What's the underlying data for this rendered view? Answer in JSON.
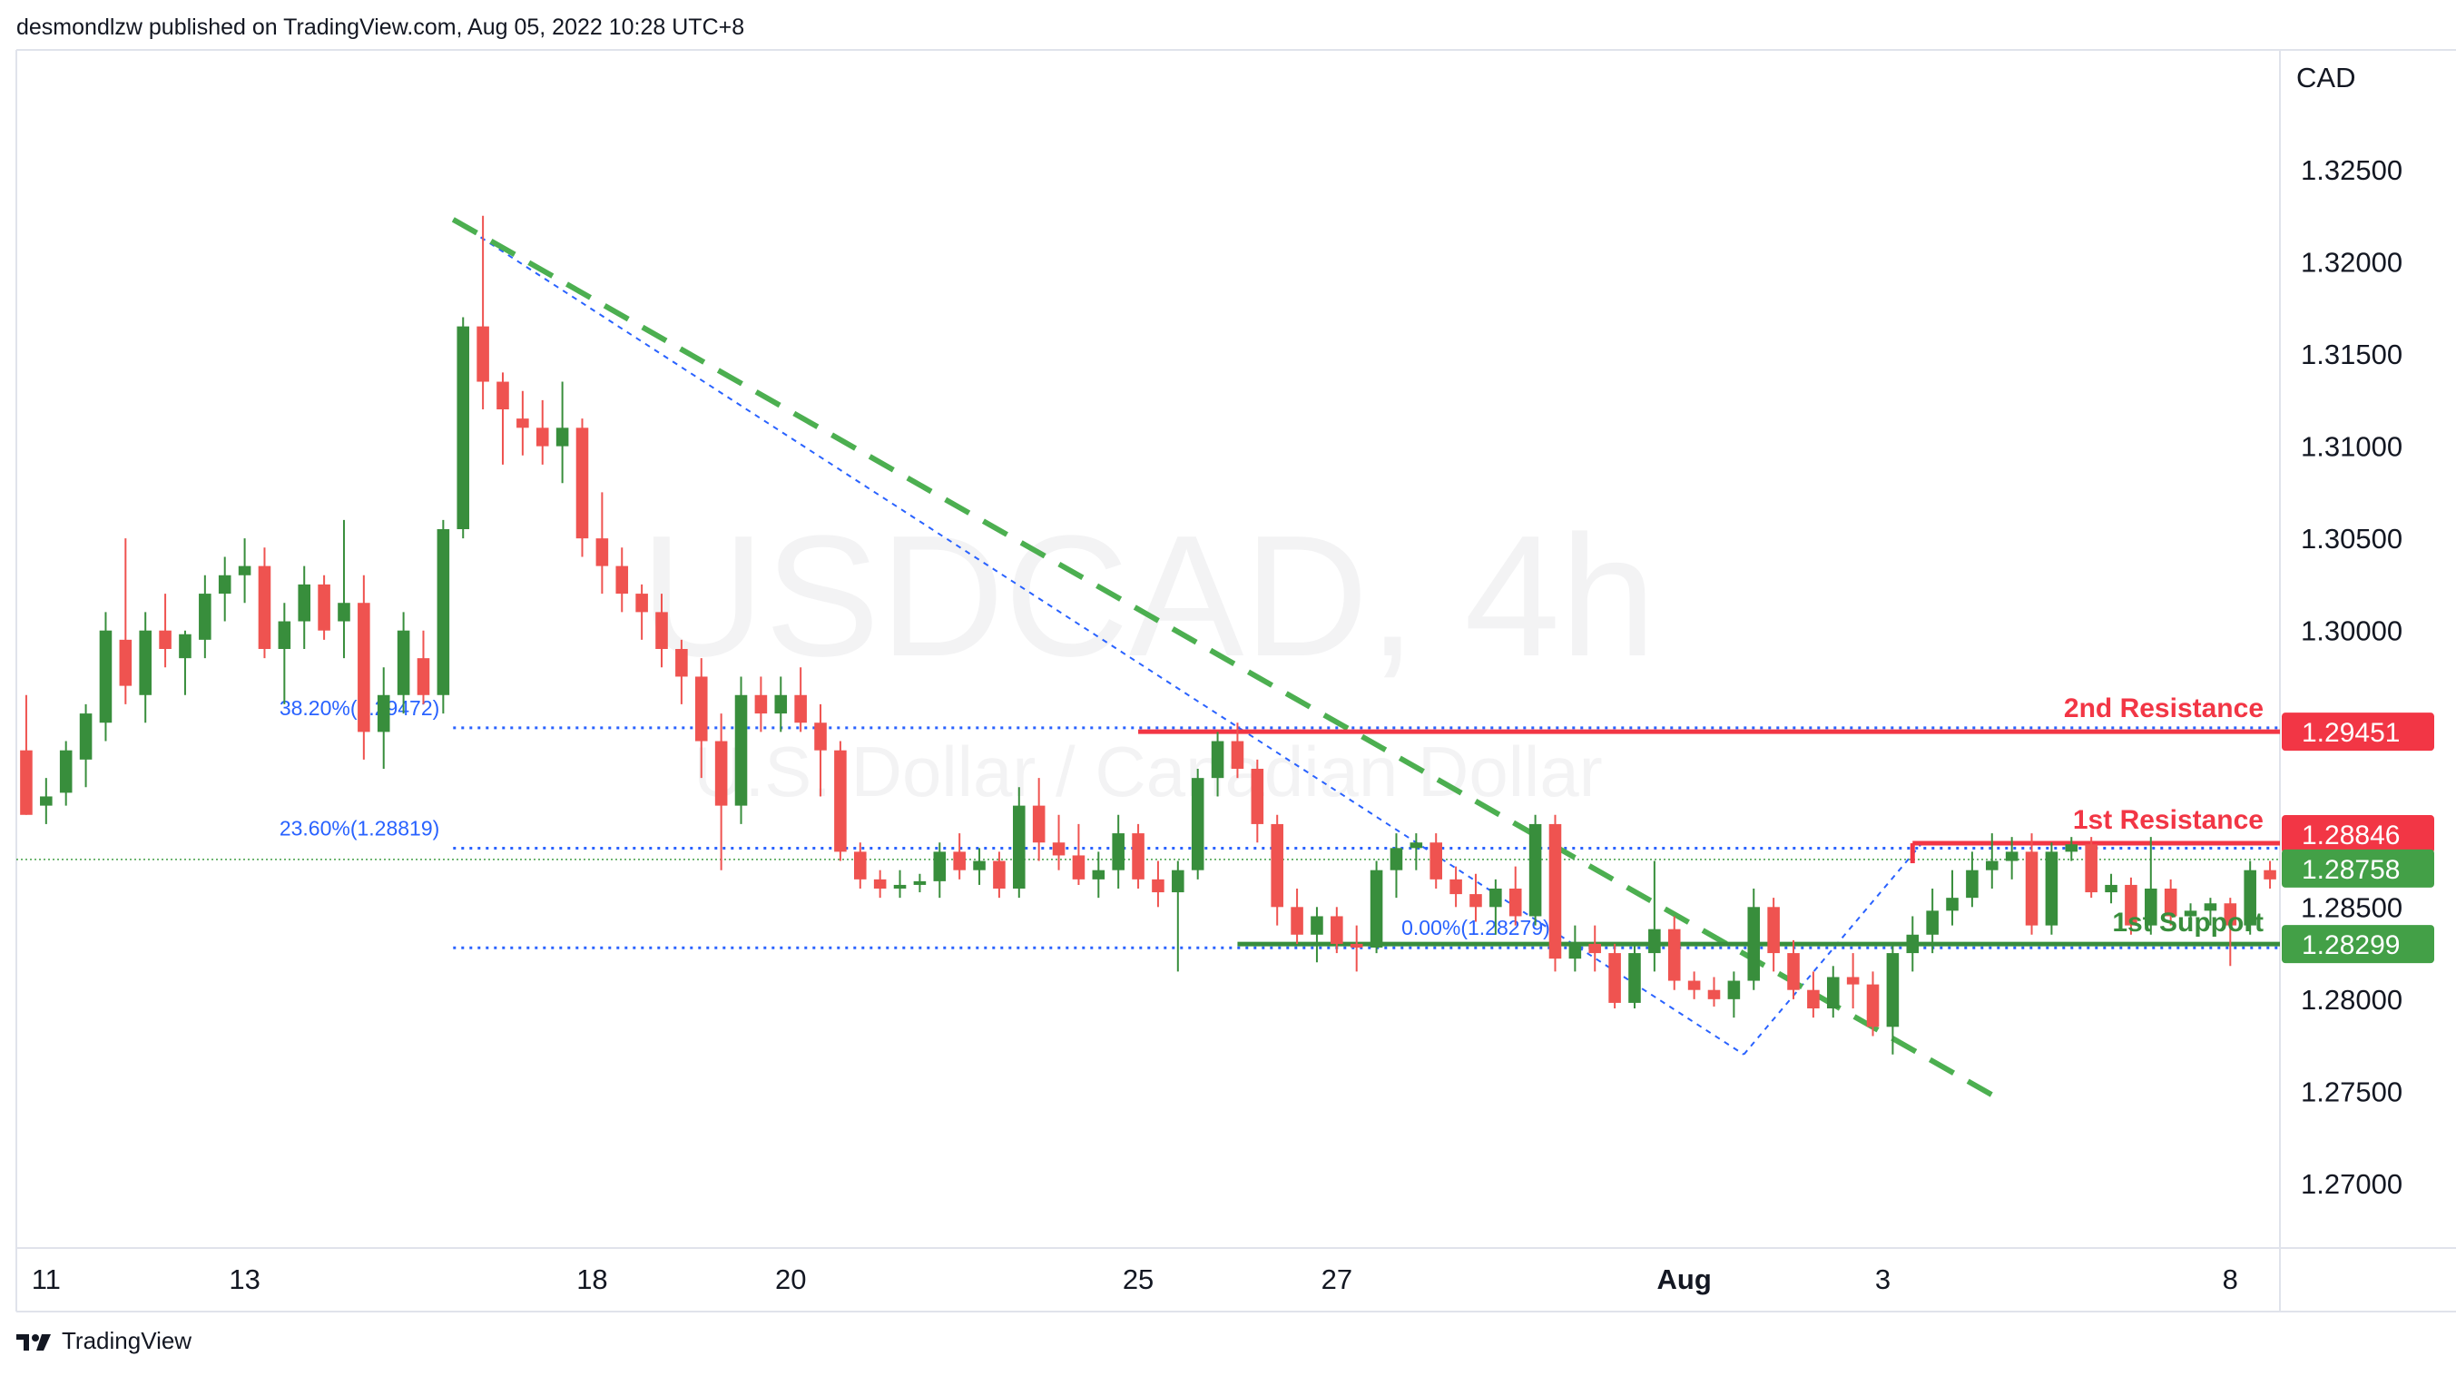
{
  "header": {
    "text": "desmondlzw published on TradingView.com, Aug 05, 2022 10:28 UTC+8"
  },
  "footer": {
    "brand": "TradingView",
    "logo_icon": "tradingview-logo-icon"
  },
  "watermark": {
    "symbol": "USDCAD, 4h",
    "description": "U.S. Dollar / Canadian Dollar"
  },
  "colors": {
    "up": "#388e3c",
    "down": "#ef5350",
    "fib": "#2962ff",
    "resistance": "#f23645",
    "support": "#388e3c",
    "trend": "#4caf50",
    "price_line": "#43a047"
  },
  "chart_data": {
    "type": "candlestick",
    "symbol": "USDCAD",
    "timeframe": "4h",
    "currency_label": "CAD",
    "ylim": [
      1.2665,
      1.3315
    ],
    "y_ticks": [
      1.325,
      1.32,
      1.315,
      1.31,
      1.305,
      1.3,
      1.285,
      1.28,
      1.275,
      1.27
    ],
    "y_tick_labels": [
      "1.32500",
      "1.32000",
      "1.31500",
      "1.31000",
      "1.30500",
      "1.30000",
      "1.28500",
      "1.28000",
      "1.27500",
      "1.27000"
    ],
    "x_range": [
      0,
      114
    ],
    "x_ticks": [
      {
        "label": "11",
        "x": 1.5,
        "bold": false
      },
      {
        "label": "13",
        "x": 11.5,
        "bold": false
      },
      {
        "label": "18",
        "x": 29,
        "bold": false
      },
      {
        "label": "20",
        "x": 39,
        "bold": false
      },
      {
        "label": "25",
        "x": 56.5,
        "bold": false
      },
      {
        "label": "27",
        "x": 66.5,
        "bold": false
      },
      {
        "label": "Aug",
        "x": 84,
        "bold": true
      },
      {
        "label": "3",
        "x": 94,
        "bold": false
      },
      {
        "label": "8",
        "x": 111.5,
        "bold": false
      }
    ],
    "candles": [
      [
        1.2935,
        1.2965,
        1.29,
        1.29
      ],
      [
        1.2905,
        1.292,
        1.2895,
        1.291
      ],
      [
        1.2912,
        1.294,
        1.2905,
        1.2935
      ],
      [
        1.293,
        1.296,
        1.2915,
        1.2955
      ],
      [
        1.295,
        1.301,
        1.294,
        1.3
      ],
      [
        1.2995,
        1.305,
        1.296,
        1.297
      ],
      [
        1.2965,
        1.301,
        1.295,
        1.3
      ],
      [
        1.3,
        1.302,
        1.298,
        1.299
      ],
      [
        1.2985,
        1.3,
        1.2965,
        1.2998
      ],
      [
        1.2995,
        1.303,
        1.2985,
        1.302
      ],
      [
        1.302,
        1.304,
        1.3005,
        1.303
      ],
      [
        1.303,
        1.305,
        1.3015,
        1.3035
      ],
      [
        1.3035,
        1.3045,
        1.2985,
        1.299
      ],
      [
        1.299,
        1.3015,
        1.296,
        1.3005
      ],
      [
        1.3005,
        1.3035,
        1.299,
        1.3025
      ],
      [
        1.3025,
        1.303,
        1.2995,
        1.3
      ],
      [
        1.3005,
        1.306,
        1.2985,
        1.3015
      ],
      [
        1.3015,
        1.303,
        1.293,
        1.2945
      ],
      [
        1.2945,
        1.298,
        1.2925,
        1.2965
      ],
      [
        1.2965,
        1.301,
        1.2955,
        1.3
      ],
      [
        1.2985,
        1.3,
        1.296,
        1.2965
      ],
      [
        1.2965,
        1.306,
        1.2955,
        1.3055
      ],
      [
        1.3055,
        1.317,
        1.305,
        1.3165
      ],
      [
        1.3165,
        1.3225,
        1.312,
        1.3135
      ],
      [
        1.3135,
        1.314,
        1.309,
        1.312
      ],
      [
        1.3115,
        1.313,
        1.3095,
        1.311
      ],
      [
        1.311,
        1.3125,
        1.309,
        1.31
      ],
      [
        1.31,
        1.3135,
        1.308,
        1.311
      ],
      [
        1.311,
        1.3115,
        1.304,
        1.305
      ],
      [
        1.305,
        1.3075,
        1.302,
        1.3035
      ],
      [
        1.3035,
        1.3045,
        1.301,
        1.302
      ],
      [
        1.302,
        1.3025,
        1.2995,
        1.301
      ],
      [
        1.301,
        1.302,
        1.298,
        1.299
      ],
      [
        1.299,
        1.2995,
        1.296,
        1.2975
      ],
      [
        1.2975,
        1.2985,
        1.292,
        1.294
      ],
      [
        1.294,
        1.2955,
        1.287,
        1.2905
      ],
      [
        1.2905,
        1.2975,
        1.2895,
        1.2965
      ],
      [
        1.2965,
        1.2975,
        1.2945,
        1.2955
      ],
      [
        1.2955,
        1.2975,
        1.2945,
        1.2965
      ],
      [
        1.2965,
        1.298,
        1.2945,
        1.295
      ],
      [
        1.295,
        1.296,
        1.291,
        1.2935
      ],
      [
        1.2935,
        1.294,
        1.2875,
        1.288
      ],
      [
        1.288,
        1.2885,
        1.286,
        1.2865
      ],
      [
        1.2865,
        1.287,
        1.2855,
        1.286
      ],
      [
        1.286,
        1.287,
        1.2855,
        1.2862
      ],
      [
        1.2862,
        1.2868,
        1.2858,
        1.2864
      ],
      [
        1.2864,
        1.2885,
        1.2855,
        1.288
      ],
      [
        1.288,
        1.289,
        1.2865,
        1.287
      ],
      [
        1.287,
        1.2882,
        1.2862,
        1.2875
      ],
      [
        1.2875,
        1.288,
        1.2855,
        1.286
      ],
      [
        1.286,
        1.2915,
        1.2855,
        1.2905
      ],
      [
        1.2905,
        1.292,
        1.2875,
        1.2885
      ],
      [
        1.2885,
        1.29,
        1.287,
        1.2878
      ],
      [
        1.2878,
        1.2895,
        1.2862,
        1.2865
      ],
      [
        1.2865,
        1.288,
        1.2855,
        1.287
      ],
      [
        1.287,
        1.29,
        1.286,
        1.289
      ],
      [
        1.289,
        1.2895,
        1.286,
        1.2865
      ],
      [
        1.2865,
        1.2875,
        1.285,
        1.2858
      ],
      [
        1.2858,
        1.2875,
        1.2815,
        1.287
      ],
      [
        1.287,
        1.2925,
        1.2865,
        1.292
      ],
      [
        1.292,
        1.2945,
        1.291,
        1.294
      ],
      [
        1.294,
        1.295,
        1.292,
        1.2925
      ],
      [
        1.2925,
        1.293,
        1.2885,
        1.2895
      ],
      [
        1.2895,
        1.29,
        1.284,
        1.285
      ],
      [
        1.285,
        1.286,
        1.283,
        1.2835
      ],
      [
        1.2835,
        1.285,
        1.282,
        1.2845
      ],
      [
        1.2845,
        1.285,
        1.2825,
        1.283
      ],
      [
        1.283,
        1.284,
        1.2815,
        1.2828
      ],
      [
        1.2828,
        1.2875,
        1.2825,
        1.287
      ],
      [
        1.287,
        1.289,
        1.2855,
        1.2882
      ],
      [
        1.2882,
        1.289,
        1.287,
        1.2885
      ],
      [
        1.2885,
        1.289,
        1.286,
        1.2865
      ],
      [
        1.2865,
        1.2872,
        1.285,
        1.2857
      ],
      [
        1.2857,
        1.2868,
        1.2842,
        1.285
      ],
      [
        1.285,
        1.2865,
        1.2835,
        1.286
      ],
      [
        1.286,
        1.2872,
        1.284,
        1.2845
      ],
      [
        1.2845,
        1.29,
        1.284,
        1.2895
      ],
      [
        1.2895,
        1.29,
        1.2815,
        1.2822
      ],
      [
        1.2822,
        1.284,
        1.2815,
        1.283
      ],
      [
        1.283,
        1.284,
        1.2815,
        1.2825
      ],
      [
        1.2825,
        1.283,
        1.2795,
        1.2798
      ],
      [
        1.2798,
        1.283,
        1.2795,
        1.2825
      ],
      [
        1.2825,
        1.2875,
        1.2815,
        1.2838
      ],
      [
        1.2838,
        1.2845,
        1.2805,
        1.281
      ],
      [
        1.281,
        1.2815,
        1.28,
        1.2805
      ],
      [
        1.2805,
        1.2812,
        1.2796,
        1.28
      ],
      [
        1.28,
        1.2815,
        1.279,
        1.281
      ],
      [
        1.281,
        1.286,
        1.2805,
        1.285
      ],
      [
        1.285,
        1.2855,
        1.2815,
        1.2825
      ],
      [
        1.2825,
        1.2832,
        1.28,
        1.2805
      ],
      [
        1.2805,
        1.2815,
        1.279,
        1.2795
      ],
      [
        1.2795,
        1.2818,
        1.279,
        1.2812
      ],
      [
        1.2812,
        1.2825,
        1.2795,
        1.2808
      ],
      [
        1.2808,
        1.2815,
        1.278,
        1.2785
      ],
      [
        1.2785,
        1.283,
        1.277,
        1.2825
      ],
      [
        1.2825,
        1.2845,
        1.2815,
        1.2835
      ],
      [
        1.2835,
        1.286,
        1.2825,
        1.2848
      ],
      [
        1.2848,
        1.287,
        1.284,
        1.2855
      ],
      [
        1.2855,
        1.288,
        1.285,
        1.287
      ],
      [
        1.287,
        1.289,
        1.286,
        1.2875
      ],
      [
        1.2875,
        1.2888,
        1.2865,
        1.288
      ],
      [
        1.288,
        1.289,
        1.2835,
        1.284
      ],
      [
        1.284,
        1.2885,
        1.2835,
        1.288
      ],
      [
        1.288,
        1.2888,
        1.2875,
        1.2884
      ],
      [
        1.2884,
        1.2888,
        1.2855,
        1.2858
      ],
      [
        1.2858,
        1.2868,
        1.2852,
        1.2862
      ],
      [
        1.2862,
        1.2866,
        1.2835,
        1.284
      ],
      [
        1.284,
        1.2888,
        1.2835,
        1.286
      ],
      [
        1.286,
        1.2865,
        1.284,
        1.2845
      ],
      [
        1.2845,
        1.2852,
        1.2838,
        1.2848
      ],
      [
        1.2848,
        1.2855,
        1.284,
        1.2852
      ],
      [
        1.2852,
        1.2855,
        1.2818,
        1.284
      ],
      [
        1.284,
        1.2875,
        1.2835,
        1.287
      ],
      [
        1.287,
        1.2875,
        1.286,
        1.2865
      ],
      [
        1.2865,
        1.2876,
        1.2862,
        1.2872
      ],
      [
        1.2872,
        1.288,
        1.2866,
        1.2876
      ]
    ],
    "price_labels": [
      {
        "value": 1.29451,
        "label": "1.29451",
        "color": "#f23645"
      },
      {
        "value": 1.28846,
        "label": "1.28846",
        "color": "#f23645"
      },
      {
        "value": 1.28758,
        "label": "1.28758",
        "color": "#43a047"
      },
      {
        "value": 1.28299,
        "label": "1.28299",
        "color": "#43a047"
      }
    ],
    "levels": [
      {
        "name": "resistance-2",
        "label": "2nd Resistance",
        "price": 1.29451,
        "x_start": 56.5,
        "color": "#f23645"
      },
      {
        "name": "resistance-1",
        "label": "1st Resistance",
        "price": 1.28846,
        "x_start": 95.5,
        "color": "#f23645"
      },
      {
        "name": "support-1",
        "label": "1st Support",
        "price": 1.28299,
        "x_start": 61.5,
        "color": "#388e3c"
      }
    ],
    "fib_levels": [
      {
        "label": "38.20%(1.29472)",
        "price": 1.29472
      },
      {
        "label": "23.60%(1.28819)",
        "price": 1.28819
      },
      {
        "label": "0.00%(1.28279)",
        "price": 1.28279
      }
    ],
    "current_price": 1.28758,
    "trendline": {
      "from": [
        22,
        1.3223
      ],
      "to": [
        100,
        1.2745
      ]
    },
    "fib_anchor_line": {
      "from": [
        22,
        1.3223
      ],
      "to": [
        87,
        1.277
      ]
    },
    "fib_right_line": {
      "from": [
        87,
        1.277
      ],
      "to": [
        96,
        1.2885
      ]
    }
  }
}
